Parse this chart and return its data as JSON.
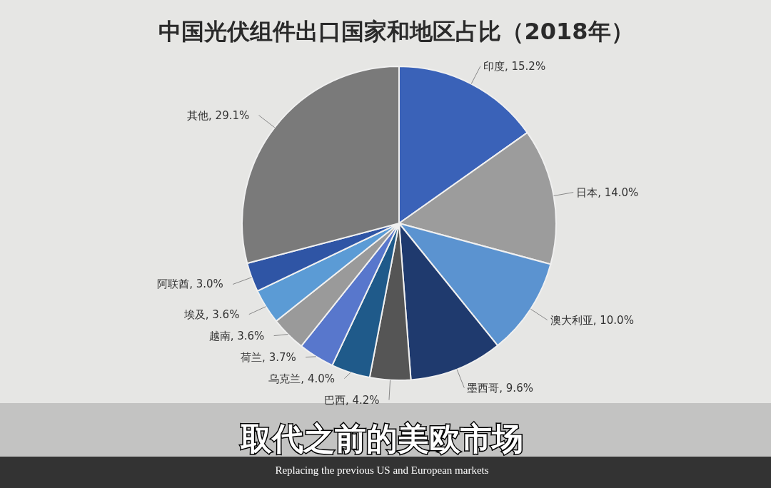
{
  "chart_data": {
    "type": "pie",
    "title": "中国光伏组件出口国家和地区占比（2018年）",
    "categories": [
      "印度",
      "日本",
      "澳大利亚",
      "墨西哥",
      "巴西",
      "乌克兰",
      "荷兰",
      "越南",
      "埃及",
      "阿联酋",
      "其他"
    ],
    "values": [
      15.2,
      14.0,
      10.0,
      9.6,
      4.2,
      4.0,
      3.7,
      3.6,
      3.6,
      3.0,
      29.1
    ],
    "colors": [
      "#3a62b8",
      "#9c9c9c",
      "#5b93d0",
      "#1f3a6e",
      "#555555",
      "#1f5a8a",
      "#5877cc",
      "#9a9a9a",
      "#5b9bd5",
      "#2f55a5",
      "#7a7a7a"
    ],
    "value_labels": [
      ", 15.2%",
      ", 14.0%",
      ", 10.0%",
      ", 9.6%",
      ", 4.2%",
      ", 4.0%",
      ", 3.7%",
      ", 3.6%",
      ", 3.6%",
      ", 3.0%",
      ", 29.1%"
    ],
    "annotations": [
      "取代之前的美欧市场",
      "Replacing the previous US and European markets"
    ]
  }
}
